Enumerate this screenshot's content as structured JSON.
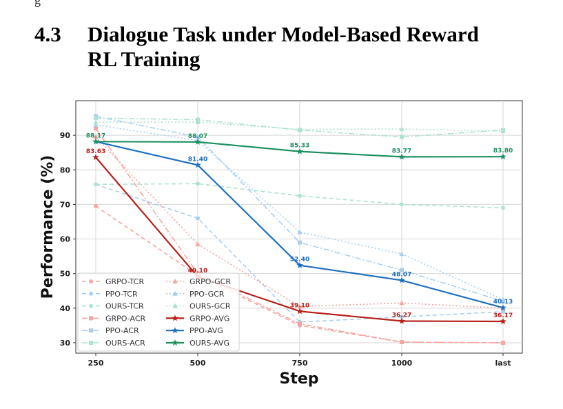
{
  "section": {
    "fragment": "g",
    "number": "4.3",
    "title_line1": "Dialogue Task under Model-Based Reward",
    "title_line2": "RL Training"
  },
  "chart_data": {
    "type": "line",
    "xlabel": "Step",
    "ylabel": "Performance (%)",
    "categories": [
      "250",
      "500",
      "750",
      "1000",
      "last"
    ],
    "ylim": [
      27,
      100
    ],
    "yticks": [
      30,
      40,
      50,
      60,
      70,
      80,
      90
    ],
    "grid": true,
    "legend_position": "lower-left",
    "series": [
      {
        "name": "GRPO-TCR",
        "color": "#f4a6a0",
        "dash": "dashed",
        "marker": "circle",
        "values": [
          69.5,
          49.5,
          35.0,
          30.2,
          30.0
        ]
      },
      {
        "name": "PPO-TCR",
        "color": "#a9cff0",
        "dash": "dashed",
        "marker": "circle",
        "values": [
          75.8,
          66.0,
          36.0,
          37.5,
          39.0
        ]
      },
      {
        "name": "OURS-TCR",
        "color": "#ade3cf",
        "dash": "dashed",
        "marker": "circle",
        "values": [
          75.8,
          76.0,
          72.5,
          70.0,
          69.0
        ]
      },
      {
        "name": "GRPO-ACR",
        "color": "#f4a6a0",
        "dash": "dashdot",
        "marker": "square",
        "values": [
          92.0,
          50.0,
          35.5,
          30.2,
          30.0
        ]
      },
      {
        "name": "PPO-ACR",
        "color": "#a9cff0",
        "dash": "dashdot",
        "marker": "square",
        "values": [
          95.5,
          89.5,
          59.0,
          51.0,
          42.0
        ]
      },
      {
        "name": "OURS-ACR",
        "color": "#ade3cf",
        "dash": "dashdot",
        "marker": "square",
        "values": [
          95.0,
          94.5,
          91.5,
          89.5,
          91.5
        ]
      },
      {
        "name": "GRPO-GCR",
        "color": "#f4a6a0",
        "dash": "dotted",
        "marker": "triangle",
        "values": [
          89.5,
          58.5,
          40.5,
          41.5,
          40.0
        ]
      },
      {
        "name": "PPO-GCR",
        "color": "#a9cff0",
        "dash": "dotted",
        "marker": "triangle",
        "values": [
          93.0,
          88.5,
          62.0,
          55.7,
          42.5
        ]
      },
      {
        "name": "OURS-GCR",
        "color": "#ade3cf",
        "dash": "dotted",
        "marker": "triangle",
        "values": [
          93.8,
          93.8,
          91.7,
          91.8,
          91.2
        ]
      },
      {
        "name": "GRPO-AVG",
        "color": "#b51f1a",
        "dash": "solid",
        "marker": "star",
        "values": [
          83.63,
          49.1,
          39.1,
          36.27,
          36.17
        ]
      },
      {
        "name": "PPO-AVG",
        "color": "#1f6fbf",
        "dash": "solid",
        "marker": "star",
        "values": [
          88.17,
          81.4,
          52.4,
          48.07,
          40.13
        ]
      },
      {
        "name": "OURS-AVG",
        "color": "#1e9060",
        "dash": "solid",
        "marker": "star",
        "values": [
          88.17,
          88.07,
          85.33,
          83.77,
          83.8
        ]
      }
    ],
    "data_labels": [
      {
        "series": "GRPO-AVG",
        "index": 0,
        "text": "83.63"
      },
      {
        "series": "GRPO-AVG",
        "index": 1,
        "text": "49.10"
      },
      {
        "series": "GRPO-AVG",
        "index": 2,
        "text": "39.10"
      },
      {
        "series": "GRPO-AVG",
        "index": 3,
        "text": "36.27"
      },
      {
        "series": "GRPO-AVG",
        "index": 4,
        "text": "36.17"
      },
      {
        "series": "PPO-AVG",
        "index": 1,
        "text": "81.40"
      },
      {
        "series": "PPO-AVG",
        "index": 2,
        "text": "52.40"
      },
      {
        "series": "PPO-AVG",
        "index": 3,
        "text": "48.07"
      },
      {
        "series": "PPO-AVG",
        "index": 4,
        "text": "40.13"
      },
      {
        "series": "OURS-AVG",
        "index": 0,
        "text": "88.17"
      },
      {
        "series": "OURS-AVG",
        "index": 1,
        "text": "88.07"
      },
      {
        "series": "OURS-AVG",
        "index": 2,
        "text": "85.33"
      },
      {
        "series": "OURS-AVG",
        "index": 3,
        "text": "83.77"
      },
      {
        "series": "OURS-AVG",
        "index": 4,
        "text": "83.80"
      }
    ]
  }
}
